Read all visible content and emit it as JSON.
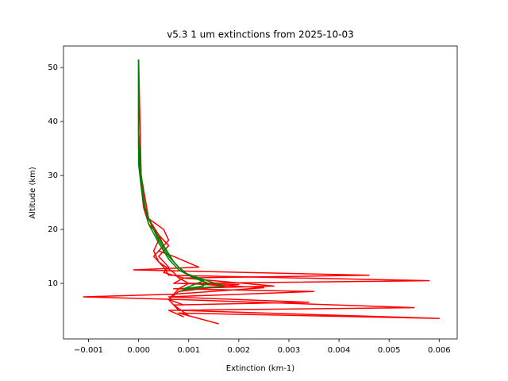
{
  "chart_data": {
    "type": "line",
    "title": "v5.3 1 um extinctions from 2025-10-03",
    "x_label": "Extinction (km-1)",
    "y_label": "Altitude (km)",
    "xlim": [
      -0.0015,
      0.00636
    ],
    "ylim": [
      -0.3,
      54
    ],
    "xticks": [
      {
        "value": -0.001,
        "label": "−0.001"
      },
      {
        "value": 0,
        "label": "0.000"
      },
      0.001,
      0.002,
      0.003,
      0.004,
      0.005,
      0.006
    ],
    "yticks": [
      10,
      20,
      30,
      40,
      50
    ],
    "grid": false,
    "series": [
      {
        "color": "#ff0000",
        "x": [
          0,
          0,
          0,
          0,
          5e-05,
          0.0001,
          0.0002,
          0.0003,
          0.0004,
          0.0003,
          0.0004,
          0.0007,
          0.0008,
          0.001,
          0.0008,
          0.0007,
          0.0006,
          0.0007,
          0.0008,
          0.006,
          0.0008,
          0.0016
        ],
        "values": [
          51.5,
          45,
          40,
          35,
          30,
          25,
          22,
          20,
          18,
          16,
          14,
          12,
          11,
          10,
          9,
          8,
          7,
          6,
          5,
          3.5,
          4.5,
          2.5
        ]
      },
      {
        "color": "#ff0000",
        "x": [
          0,
          0,
          0,
          5e-05,
          0.0001,
          0.0002,
          0.0004,
          0.0005,
          0.0003,
          0.0005,
          0.0006,
          0.0058,
          0.0009,
          0.0025,
          0.0007,
          -0.0011,
          0.0008,
          0.0055,
          0.0006,
          0.0009
        ],
        "values": [
          51.5,
          40,
          33,
          28,
          24,
          21,
          19,
          17,
          15,
          13,
          11.5,
          10.5,
          10,
          9.2,
          8,
          7.5,
          7,
          5.5,
          5,
          3.8
        ]
      },
      {
        "color": "#ff0000",
        "x": [
          0,
          0,
          5e-05,
          0.0001,
          0.0002,
          0.0005,
          0.0006,
          0.0004,
          0.0007,
          0.0012,
          -0.0001,
          0.0046,
          0.0009,
          0.0027,
          0.0007,
          0.0035,
          0.0006,
          0.0034,
          0.0007,
          0.001
        ],
        "values": [
          51.5,
          38,
          30,
          25,
          22,
          20,
          18,
          16,
          15,
          13,
          12.5,
          11.5,
          11,
          9.5,
          9,
          8.5,
          7.5,
          6.5,
          6,
          4
        ]
      },
      {
        "color": "#ff0000",
        "x": [
          0,
          5e-05,
          0.0002,
          0.0004,
          0.0006,
          0.0004,
          0.0006,
          0.0005,
          0.0009,
          0.0007,
          0.002,
          0.0008,
          0.0006,
          0.0009
        ],
        "values": [
          51.5,
          30,
          22,
          19,
          17,
          15,
          13,
          12,
          11,
          10,
          9.8,
          8.5,
          7,
          6
        ]
      },
      {
        "color": "#008000",
        "x": [
          0,
          0,
          0,
          5e-05,
          0.0001,
          0.0002,
          0.0003,
          0.0005,
          0.0007,
          0.0009,
          0.0012,
          0.0017,
          0.001,
          0.0008
        ],
        "values": [
          51.5,
          40,
          32,
          28,
          25,
          22,
          20,
          17,
          14,
          12,
          11,
          9.5,
          9,
          8.5
        ]
      },
      {
        "color": "#008000",
        "x": [
          0,
          0,
          5e-05,
          0.0001,
          0.00015,
          0.00025,
          0.0004,
          0.0006,
          0.0008,
          0.001,
          0.0013,
          0.0009,
          0.0013
        ],
        "values": [
          51.5,
          38,
          30,
          26,
          23,
          21,
          18,
          15,
          13,
          11.5,
          10.5,
          9,
          9.5
        ]
      },
      {
        "color": "#008000",
        "x": [
          0,
          0,
          5e-05,
          0.0001,
          0.0002,
          0.0004,
          0.0006,
          0.0008,
          0.0011,
          0.0014,
          0.0011
        ],
        "values": [
          51.5,
          35,
          29,
          25,
          21,
          17.5,
          14.5,
          12.5,
          11,
          10,
          9
        ]
      }
    ]
  }
}
